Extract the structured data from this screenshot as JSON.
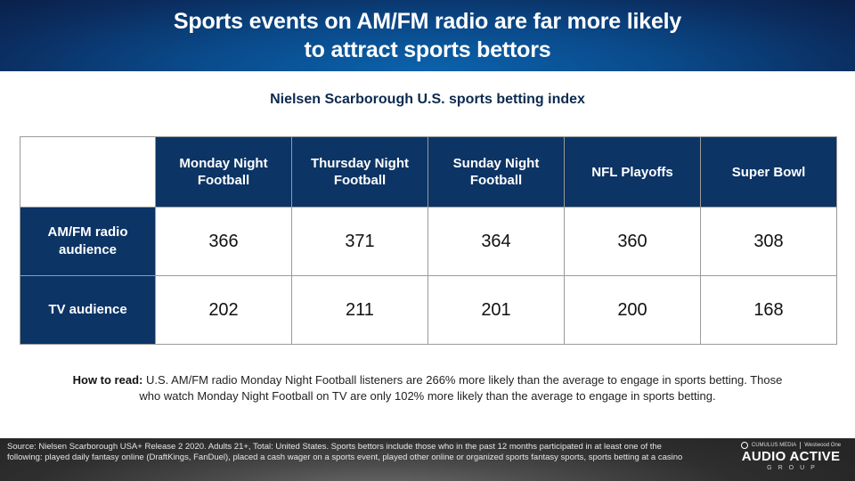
{
  "title": {
    "line1": "Sports events on AM/FM radio are far more likely",
    "line2": "to attract sports bettors"
  },
  "subtitle": "Nielsen Scarborough U.S. sports betting index",
  "table": {
    "columns": [
      "Monday Night Football",
      "Thursday Night Football",
      "Sunday Night Football",
      "NFL Playoffs",
      "Super Bowl"
    ],
    "rows": [
      {
        "label": "AM/FM radio audience",
        "values": [
          "366",
          "371",
          "364",
          "360",
          "308"
        ]
      },
      {
        "label": "TV audience",
        "values": [
          "202",
          "211",
          "201",
          "200",
          "168"
        ]
      }
    ]
  },
  "chart_data": {
    "type": "table",
    "title": "Nielsen Scarborough U.S. sports betting index",
    "categories": [
      "Monday Night Football",
      "Thursday Night Football",
      "Sunday Night Football",
      "NFL Playoffs",
      "Super Bowl"
    ],
    "series": [
      {
        "name": "AM/FM radio audience",
        "values": [
          366,
          371,
          364,
          360,
          308
        ]
      },
      {
        "name": "TV audience",
        "values": [
          202,
          211,
          201,
          200,
          168
        ]
      }
    ]
  },
  "how_to_read": {
    "label": "How to read:",
    "text": " U.S. AM/FM radio Monday Night Football listeners are 266% more likely than the average to engage in sports betting. Those who watch Monday Night Football on TV are only 102% more likely than the average to engage in sports betting."
  },
  "footer": {
    "source": "Source: Nielsen Scarborough USA+ Release 2 2020. Adults 21+, Total: United States. Sports bettors include those who in the past 12 months participated in at least one of the following: played daily fantasy online (DraftKings, FanDuel), placed a cash wager on a sports event, played other online or organized sports fantasy sports, sports betting at a casino",
    "logo": {
      "partner1": "CUMULUS MEDIA",
      "partner2": "Westwood One",
      "main": "AUDIO ACTIVE",
      "sub": "GROUP"
    }
  },
  "colors": {
    "header_navy": "#0c3465",
    "title_blue": "#0b63ad",
    "subtitle_text": "#0c2a4f"
  }
}
